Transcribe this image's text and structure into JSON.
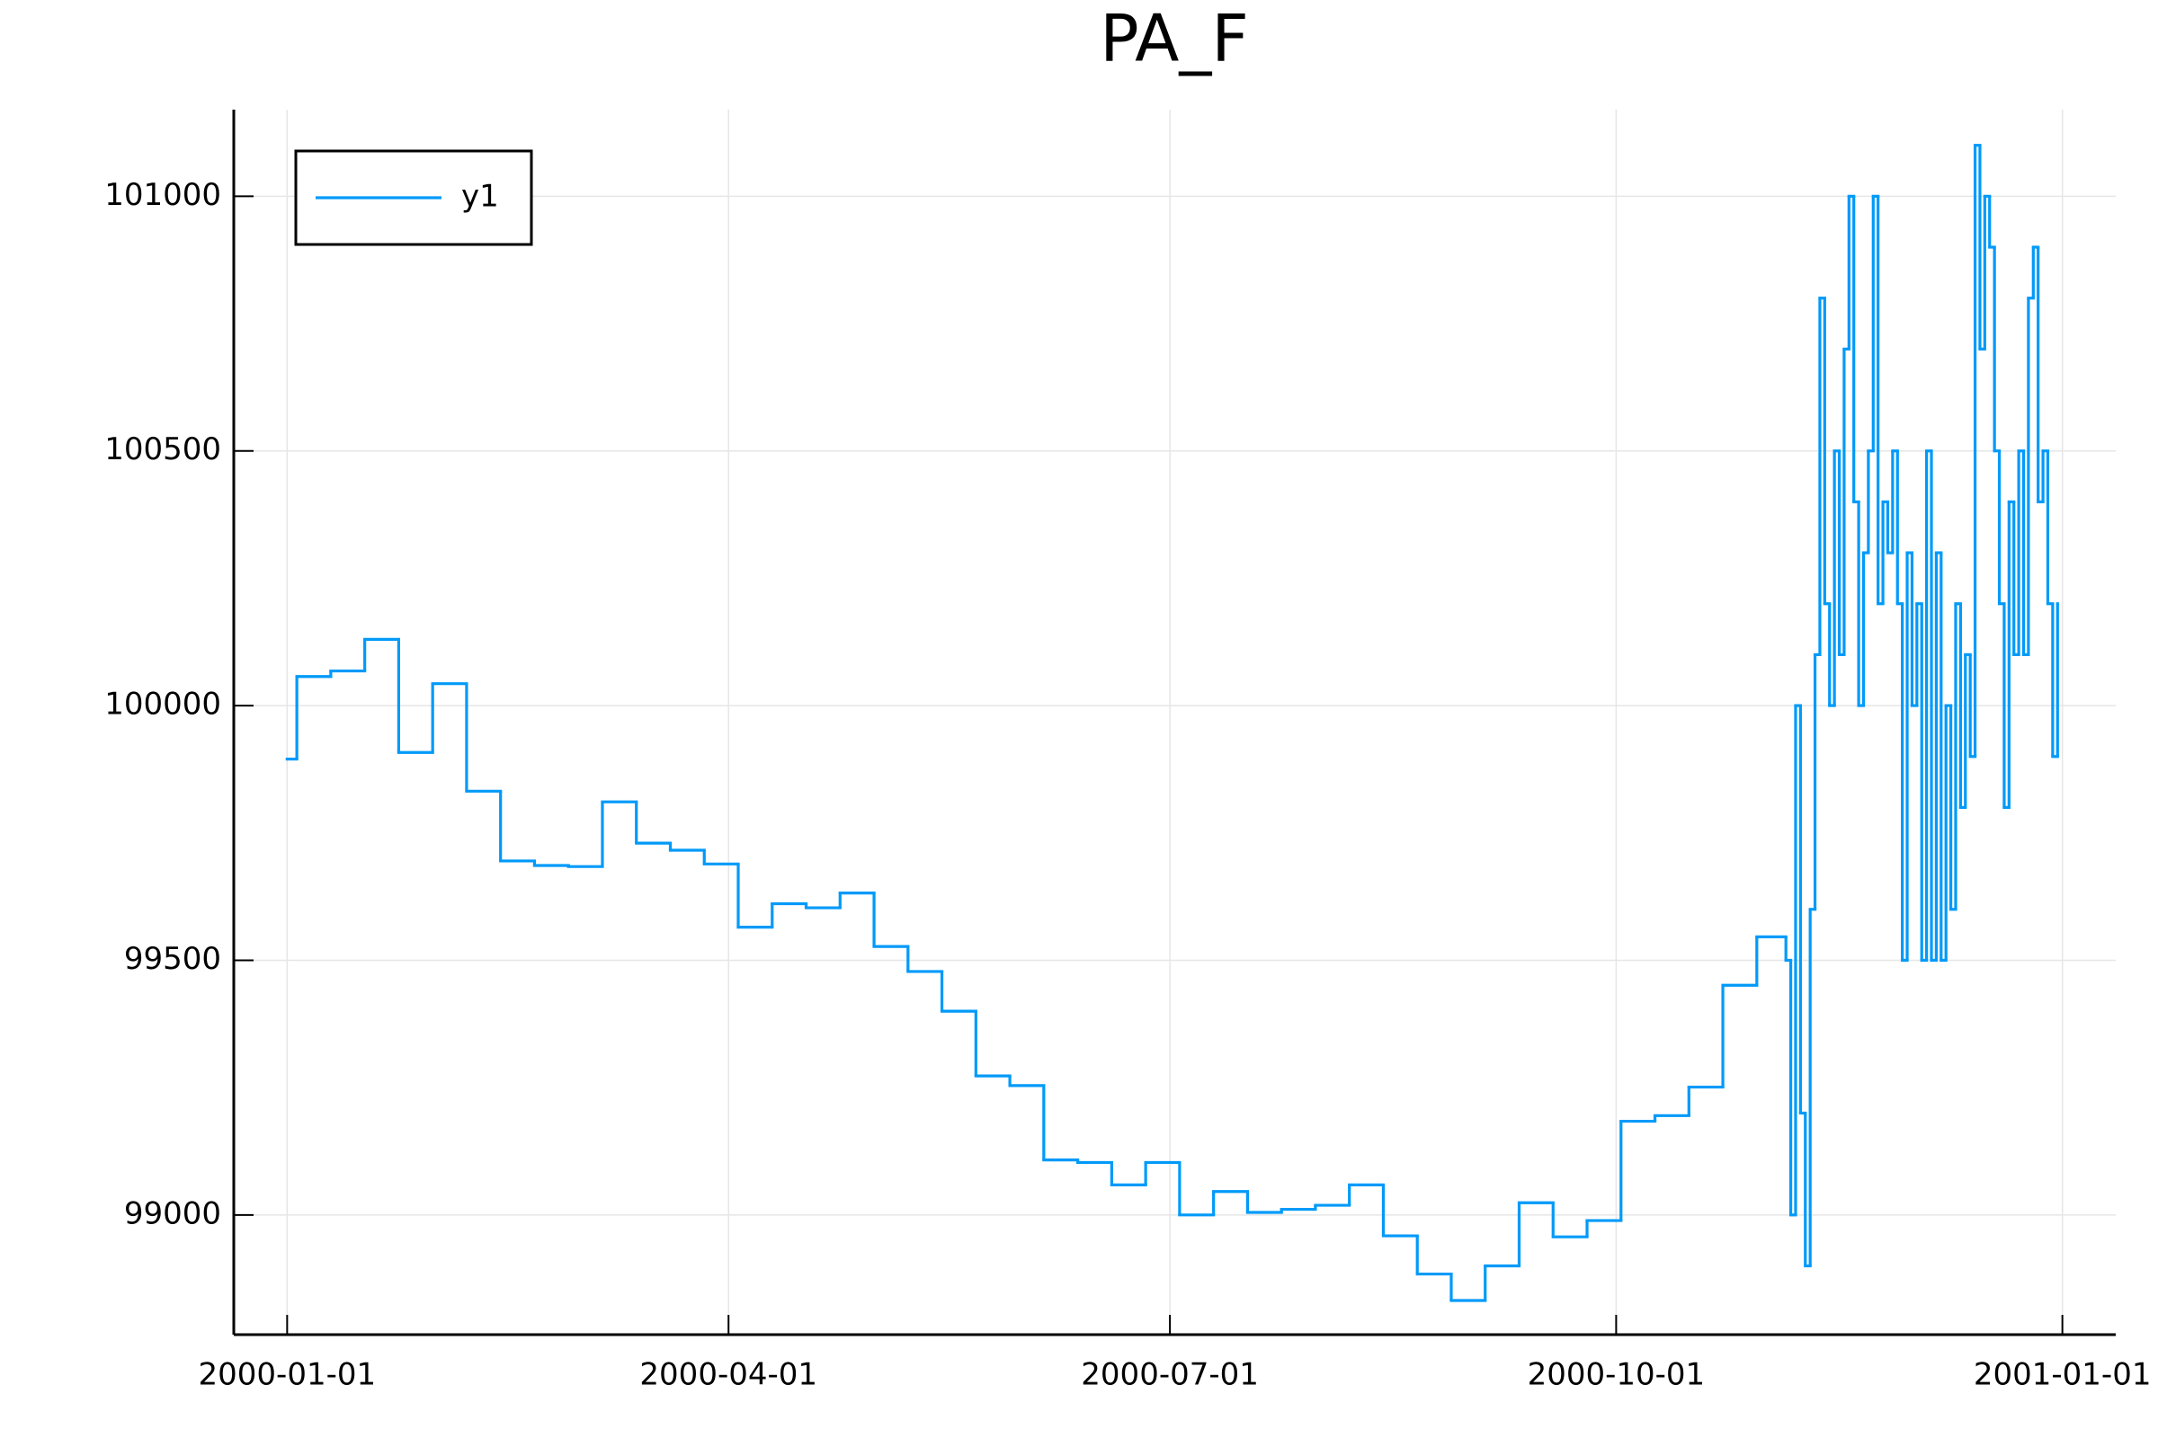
{
  "chart_data": {
    "type": "line",
    "title": "PA_F",
    "step": "post",
    "grid": true,
    "legend_position": "top-left",
    "xlim": [
      "1999-12-21",
      "2001-01-12"
    ],
    "xticks": [
      "2000-01-01",
      "2000-04-01",
      "2000-07-01",
      "2000-10-01",
      "2001-01-01"
    ],
    "ylim": [
      98765,
      101170
    ],
    "yticks": [
      99000,
      99500,
      100000,
      100500,
      101000
    ],
    "x": [
      "2000-01-01",
      "2000-01-03",
      "2000-01-10",
      "2000-01-17",
      "2000-01-24",
      "2000-01-31",
      "2000-02-07",
      "2000-02-14",
      "2000-02-21",
      "2000-02-28",
      "2000-03-06",
      "2000-03-13",
      "2000-03-20",
      "2000-03-27",
      "2000-04-03",
      "2000-04-10",
      "2000-04-17",
      "2000-04-24",
      "2000-05-01",
      "2000-05-08",
      "2000-05-15",
      "2000-05-22",
      "2000-05-29",
      "2000-06-05",
      "2000-06-12",
      "2000-06-19",
      "2000-06-26",
      "2000-07-03",
      "2000-07-10",
      "2000-07-17",
      "2000-07-24",
      "2000-07-31",
      "2000-08-07",
      "2000-08-14",
      "2000-08-21",
      "2000-08-28",
      "2000-09-04",
      "2000-09-11",
      "2000-09-18",
      "2000-09-25",
      "2000-10-02",
      "2000-10-09",
      "2000-10-16",
      "2000-10-23",
      "2000-10-30",
      "2000-11-05",
      "2000-11-06",
      "2000-11-07",
      "2000-11-08",
      "2000-11-09",
      "2000-11-10",
      "2000-11-11",
      "2000-11-12",
      "2000-11-13",
      "2000-11-14",
      "2000-11-15",
      "2000-11-16",
      "2000-11-17",
      "2000-11-18",
      "2000-11-19",
      "2000-11-20",
      "2000-11-21",
      "2000-11-22",
      "2000-11-23",
      "2000-11-24",
      "2000-11-25",
      "2000-11-26",
      "2000-11-27",
      "2000-11-28",
      "2000-11-29",
      "2000-11-30",
      "2000-12-01",
      "2000-12-02",
      "2000-12-03",
      "2000-12-04",
      "2000-12-05",
      "2000-12-06",
      "2000-12-07",
      "2000-12-08",
      "2000-12-09",
      "2000-12-10",
      "2000-12-11",
      "2000-12-12",
      "2000-12-13",
      "2000-12-14",
      "2000-12-15",
      "2000-12-16",
      "2000-12-17",
      "2000-12-18",
      "2000-12-19",
      "2000-12-20",
      "2000-12-21",
      "2000-12-22",
      "2000-12-23",
      "2000-12-24",
      "2000-12-25",
      "2000-12-26",
      "2000-12-27",
      "2000-12-28",
      "2000-12-29",
      "2000-12-30",
      "2000-12-31"
    ],
    "series": [
      {
        "name": "y1",
        "color": "#009af9",
        "values": [
          99895,
          100057,
          100068,
          100130,
          99908,
          100043,
          99832,
          99695,
          99686,
          99684,
          99811,
          99730,
          99716,
          99689,
          99565,
          99611,
          99603,
          99632,
          99527,
          99478,
          99400,
          99273,
          99254,
          99108,
          99103,
          99059,
          99103,
          99000,
          99046,
          99005,
          99011,
          99019,
          99059,
          98959,
          98884,
          98832,
          98900,
          99024,
          98957,
          98989,
          99184,
          99195,
          99251,
          99451,
          99546,
          99500,
          99000,
          100000,
          99200,
          98900,
          99600,
          100100,
          100800,
          100200,
          100000,
          100500,
          100100,
          100700,
          101000,
          100400,
          100000,
          100300,
          100500,
          101000,
          100200,
          100400,
          100300,
          100500,
          100200,
          99500,
          100300,
          100000,
          100200,
          99500,
          100500,
          99500,
          100300,
          99500,
          100000,
          99600,
          100200,
          99800,
          100100,
          99900,
          101100,
          100700,
          101000,
          100900,
          100500,
          100200,
          99800,
          100400,
          100100,
          100500,
          100100,
          100800,
          100900,
          100400,
          100500,
          100200,
          99900,
          100200
        ]
      }
    ]
  }
}
